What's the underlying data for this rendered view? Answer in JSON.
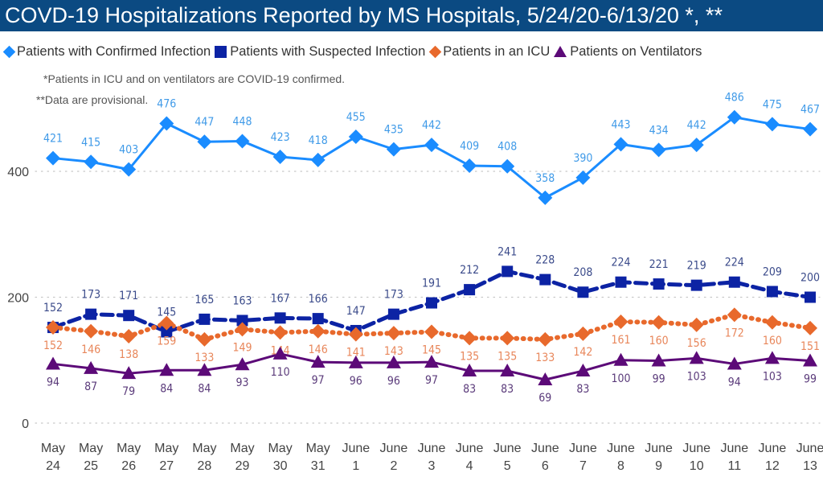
{
  "header": {
    "title": "COVD-19 Hospitalizations Reported by MS Hospitals, 5/24/20-6/13/20 *, **"
  },
  "notes": {
    "note1": "*Patients in ICU and on ventilators are COVID-19 confirmed.",
    "note2": "**Data are provisional."
  },
  "legend": [
    {
      "label": "Patients with Confirmed Infection",
      "marker": "diamond",
      "color": "#1a8cff"
    },
    {
      "label": "Patients with Suspected Infection",
      "marker": "square",
      "color": "#0c23a4"
    },
    {
      "label": "Patients in an ICU",
      "marker": "diamond",
      "color": "#e8692c"
    },
    {
      "label": "Patients on Ventilators",
      "marker": "triangle",
      "color": "#5c0a78"
    }
  ],
  "chart_data": {
    "type": "line",
    "title": "COVD-19 Hospitalizations Reported by MS Hospitals, 5/24/20-6/13/20 *, **",
    "xlabel": "",
    "ylabel": "",
    "ylim": [
      0,
      500
    ],
    "yticks": [
      0,
      200,
      400
    ],
    "grid": true,
    "legend_position": "top-left",
    "categories": [
      [
        "May",
        "24"
      ],
      [
        "May",
        "25"
      ],
      [
        "May",
        "26"
      ],
      [
        "May",
        "27"
      ],
      [
        "May",
        "28"
      ],
      [
        "May",
        "29"
      ],
      [
        "May",
        "30"
      ],
      [
        "May",
        "31"
      ],
      [
        "June",
        "1"
      ],
      [
        "June",
        "2"
      ],
      [
        "June",
        "3"
      ],
      [
        "June",
        "4"
      ],
      [
        "June",
        "5"
      ],
      [
        "June",
        "6"
      ],
      [
        "June",
        "7"
      ],
      [
        "June",
        "8"
      ],
      [
        "June",
        "9"
      ],
      [
        "June",
        "10"
      ],
      [
        "June",
        "11"
      ],
      [
        "June",
        "12"
      ],
      [
        "June",
        "13"
      ]
    ],
    "series": [
      {
        "name": "Patients with Confirmed Infection",
        "color": "#1a8cff",
        "label_color": "#3f9ae8",
        "marker": "diamond",
        "dash": "solid",
        "label_pos": "above",
        "values": [
          421,
          415,
          403,
          476,
          447,
          448,
          423,
          418,
          455,
          435,
          442,
          409,
          408,
          358,
          390,
          443,
          434,
          442,
          486,
          475,
          467
        ]
      },
      {
        "name": "Patients with Suspected Infection",
        "color": "#0c23a4",
        "label_color": "#3a4a8a",
        "marker": "square",
        "dash": "dashed",
        "label_pos": "above",
        "values": [
          152,
          173,
          171,
          145,
          165,
          163,
          167,
          166,
          147,
          173,
          191,
          212,
          241,
          228,
          208,
          224,
          221,
          219,
          224,
          209,
          200
        ]
      },
      {
        "name": "Patients in an ICU",
        "color": "#e8692c",
        "label_color": "#e8865a",
        "marker": "diamond",
        "dash": "dotted",
        "label_pos": "below",
        "values": [
          152,
          146,
          138,
          159,
          133,
          149,
          144,
          146,
          141,
          143,
          145,
          135,
          135,
          133,
          142,
          161,
          160,
          156,
          172,
          160,
          151
        ]
      },
      {
        "name": "Patients on Ventilators",
        "color": "#5c0a78",
        "label_color": "#5a3a7a",
        "marker": "triangle",
        "dash": "solid",
        "label_pos": "below",
        "values": [
          94,
          87,
          79,
          84,
          84,
          93,
          110,
          97,
          96,
          96,
          97,
          83,
          83,
          69,
          83,
          100,
          99,
          103,
          94,
          103,
          99
        ]
      }
    ]
  }
}
